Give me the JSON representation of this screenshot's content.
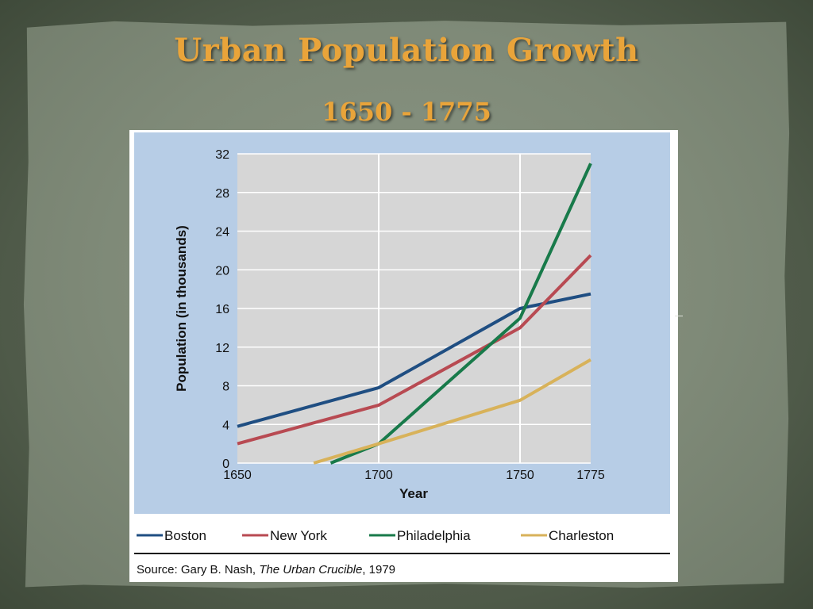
{
  "slide": {
    "title": "Urban Population Growth",
    "subtitle": "1650 - 1775"
  },
  "chart_data": {
    "type": "line",
    "ylabel": "Population (in thousands)",
    "xlabel": "Year",
    "x_ticks": [
      "1650",
      "1700",
      "1750",
      "1775"
    ],
    "y_ticks": [
      "0",
      "4",
      "8",
      "12",
      "16",
      "20",
      "24",
      "28",
      "32"
    ],
    "xlim": [
      1650,
      1775
    ],
    "ylim": [
      0,
      32
    ],
    "grid": true,
    "legend_position": "bottom",
    "series": [
      {
        "name": "Boston",
        "color": "#1f4e82",
        "points": [
          [
            1650,
            3.8
          ],
          [
            1700,
            7.8
          ],
          [
            1750,
            16.0
          ],
          [
            1775,
            17.5
          ]
        ]
      },
      {
        "name": "New York",
        "color": "#b84a52",
        "points": [
          [
            1650,
            2.0
          ],
          [
            1700,
            6.0
          ],
          [
            1750,
            14.0
          ],
          [
            1775,
            21.5
          ]
        ]
      },
      {
        "name": "Philadelphia",
        "color": "#187a4a",
        "points": [
          [
            1683,
            0.0
          ],
          [
            1700,
            2.0
          ],
          [
            1750,
            15.0
          ],
          [
            1775,
            31.0
          ]
        ]
      },
      {
        "name": "Charleston",
        "color": "#d8b25a",
        "points": [
          [
            1677,
            0.0
          ],
          [
            1700,
            2.0
          ],
          [
            1750,
            6.5
          ],
          [
            1775,
            10.7
          ]
        ]
      }
    ],
    "source_prefix": "Source: Gary B. Nash, ",
    "source_title": "The Urban Crucible",
    "source_suffix": ", 1979"
  }
}
